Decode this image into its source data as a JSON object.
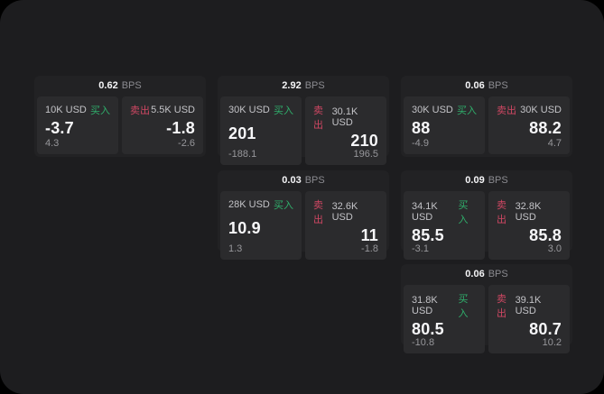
{
  "labels": {
    "bps_unit": "BPS",
    "buy": "买入",
    "sell": "卖出"
  },
  "colors": {
    "page_background": "#000000",
    "panel_background": "#1d1d1f",
    "card_background": "#222224",
    "subpanel_background": "#2b2b2d",
    "buy_accent": "#2fae6b",
    "sell_accent": "#cf4763"
  },
  "cards": [
    {
      "bps": "0.62",
      "buy": {
        "size": "10K USD",
        "price": "-3.7",
        "delta": "4.3"
      },
      "sell": {
        "size": "5.5K USD",
        "price": "-1.8",
        "delta": "-2.6"
      }
    },
    {
      "bps": "2.92",
      "buy": {
        "size": "30K USD",
        "price": "201",
        "delta": "-188.1"
      },
      "sell": {
        "size": "30.1K USD",
        "price": "210",
        "delta": "196.5"
      }
    },
    {
      "bps": "0.06",
      "buy": {
        "size": "30K USD",
        "price": "88",
        "delta": "-4.9"
      },
      "sell": {
        "size": "30K USD",
        "price": "88.2",
        "delta": "4.7"
      }
    },
    {
      "bps": "0.03",
      "buy": {
        "size": "28K USD",
        "price": "10.9",
        "delta": "1.3"
      },
      "sell": {
        "size": "32.6K USD",
        "price": "11",
        "delta": "-1.8"
      }
    },
    {
      "bps": "0.09",
      "buy": {
        "size": "34.1K USD",
        "price": "85.5",
        "delta": "-3.1"
      },
      "sell": {
        "size": "32.8K USD",
        "price": "85.8",
        "delta": "3.0"
      }
    },
    {
      "bps": "0.06",
      "buy": {
        "size": "31.8K USD",
        "price": "80.5",
        "delta": "-10.8"
      },
      "sell": {
        "size": "39.1K USD",
        "price": "80.7",
        "delta": "10.2"
      }
    }
  ]
}
